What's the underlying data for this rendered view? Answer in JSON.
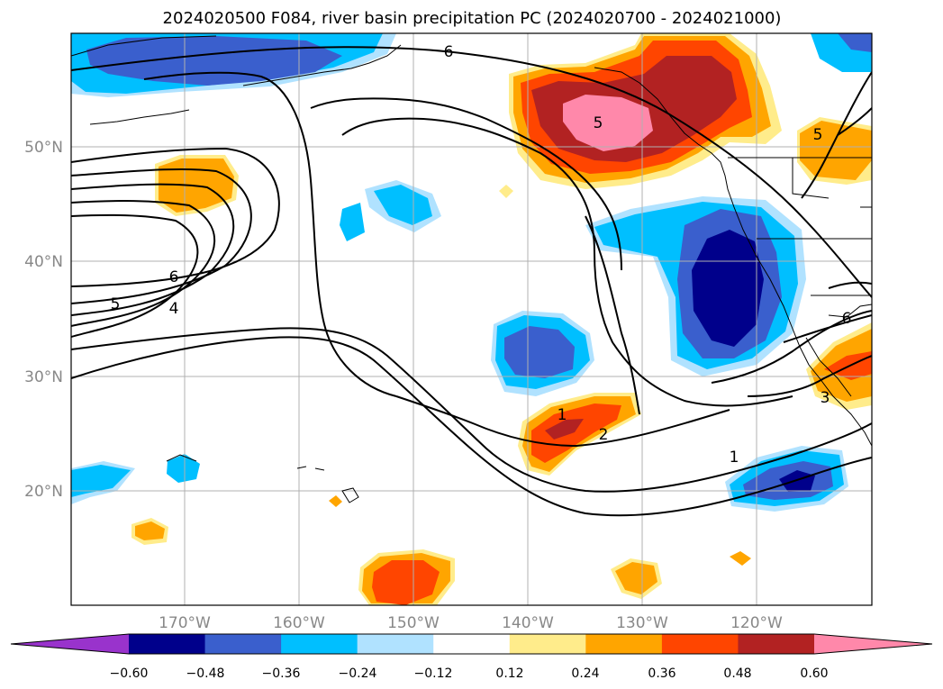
{
  "title": "2024020500 F084, river basin precipitation PC (2024020700 - 2024021000)",
  "axes": {
    "lon_ticks": [
      "170°W",
      "160°W",
      "150°W",
      "140°W",
      "130°W",
      "120°W"
    ],
    "lat_ticks": [
      "50°N",
      "40°N",
      "30°N",
      "20°N"
    ]
  },
  "colorbar": {
    "ticks": [
      "−0.60",
      "−0.48",
      "−0.36",
      "−0.24",
      "−0.12",
      "0.12",
      "0.24",
      "0.36",
      "0.48",
      "0.60"
    ],
    "colors": [
      "#9933cc",
      "#00008b",
      "#3a5fcd",
      "#00bfff",
      "#b0e2ff",
      "#ffffff",
      "#ffec8b",
      "#ffa500",
      "#ff4500",
      "#b22222",
      "#ff88aa"
    ]
  },
  "contour_labels": [
    "6",
    "5",
    "6",
    "5",
    "4",
    "1",
    "2",
    "1",
    "3",
    "6",
    "5"
  ]
}
